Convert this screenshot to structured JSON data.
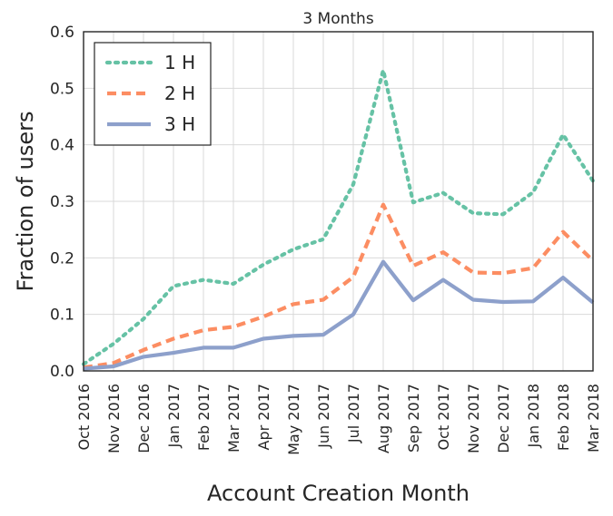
{
  "chart_data": {
    "type": "line",
    "title": "3 Months",
    "xlabel": "Account Creation Month",
    "ylabel": "Fraction of users",
    "ylim": [
      0,
      0.6
    ],
    "yticks": [
      "0.0",
      "0.1",
      "0.2",
      "0.3",
      "0.4",
      "0.5",
      "0.6"
    ],
    "grid": true,
    "legend_position": "top-left",
    "categories": [
      "Oct 2016",
      "Nov 2016",
      "Dec 2016",
      "Jan 2017",
      "Feb 2017",
      "Mar 2017",
      "Apr 2017",
      "May 2017",
      "Jun 2017",
      "Jul 2017",
      "Aug 2017",
      "Sep 2017",
      "Oct 2017",
      "Nov 2017",
      "Dec 2017",
      "Jan 2018",
      "Feb 2018",
      "Mar 2018"
    ],
    "series": [
      {
        "name": "1 H",
        "color": "#66c2a5",
        "style": "dotted",
        "values": [
          0.012,
          0.048,
          0.092,
          0.15,
          0.161,
          0.154,
          0.188,
          0.215,
          0.233,
          0.33,
          0.532,
          0.298,
          0.315,
          0.279,
          0.277,
          0.316,
          0.418,
          0.336
        ]
      },
      {
        "name": "2 H",
        "color": "#fc8d62",
        "style": "dashed",
        "values": [
          0.006,
          0.014,
          0.037,
          0.057,
          0.072,
          0.078,
          0.096,
          0.118,
          0.126,
          0.166,
          0.294,
          0.186,
          0.21,
          0.174,
          0.173,
          0.182,
          0.246,
          0.195
        ]
      },
      {
        "name": "3 H",
        "color": "#8da0cb",
        "style": "solid",
        "values": [
          0.004,
          0.008,
          0.025,
          0.032,
          0.041,
          0.041,
          0.057,
          0.062,
          0.064,
          0.1,
          0.193,
          0.125,
          0.161,
          0.126,
          0.122,
          0.123,
          0.165,
          0.121
        ]
      }
    ]
  }
}
